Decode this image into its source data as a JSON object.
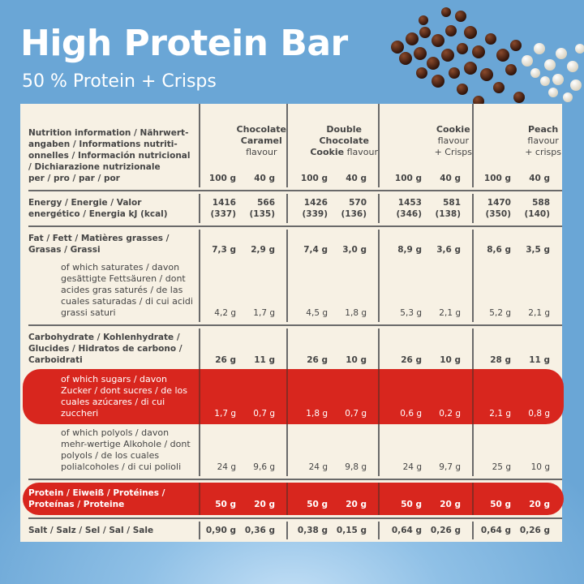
{
  "title": "High Protein Bar",
  "subtitle": "50 % Protein + Crisps",
  "header": {
    "label": "Nutrition information / Nährwert-angaben / Informations nutriti-onnelles / Información nutricional / Dichiarazione nutrizionale",
    "per": "per / pro / par / por",
    "units": [
      "100 g",
      "40 g"
    ]
  },
  "products": [
    {
      "lines": [
        [
          {
            "t": "Chocolate",
            "b": true
          }
        ],
        [
          {
            "t": "Caramel",
            "b": true
          }
        ],
        [
          {
            "t": "flavour",
            "b": false
          }
        ]
      ]
    },
    {
      "lines": [
        [
          {
            "t": "Double",
            "b": true
          }
        ],
        [
          {
            "t": "Chocolate",
            "b": true
          }
        ],
        [
          {
            "t": "Cookie",
            "b": true
          },
          {
            "t": " flavour",
            "b": false
          }
        ]
      ]
    },
    {
      "lines": [
        [
          {
            "t": "Cookie",
            "b": true
          }
        ],
        [
          {
            "t": "flavour",
            "b": false
          }
        ],
        [
          {
            "t": "+ Crisps",
            "b": false
          }
        ]
      ]
    },
    {
      "lines": [
        [
          {
            "t": "Peach",
            "b": true
          }
        ],
        [
          {
            "t": "flavour",
            "b": false
          }
        ],
        [
          {
            "t": "+ crisps",
            "b": false
          }
        ]
      ]
    }
  ],
  "sections": [
    [
      {
        "label": "Energy / Energie / Valor energético / Energia kJ (kcal)",
        "values": [
          "1416\n(337)",
          "566\n(135)",
          "1426\n(339)",
          "570\n(136)",
          "1453\n(346)",
          "581\n(138)",
          "1470\n(350)",
          "588\n(140)"
        ]
      }
    ],
    [
      {
        "label": "Fat / Fett / Matières grasses / Grasas / Grassi",
        "values": [
          "7,3 g",
          "2,9 g",
          "7,4 g",
          "3,0 g",
          "8,9 g",
          "3,6 g",
          "8,6 g",
          "3,5 g"
        ]
      },
      {
        "label": "of which saturates / davon gesättigte Fettsäuren / dont acides gras saturés / de las cuales saturadas / di cui acidi grassi saturi",
        "sub": true,
        "values": [
          "4,2 g",
          "1,7 g",
          "4,5 g",
          "1,8 g",
          "5,3 g",
          "2,1 g",
          "5,2 g",
          "2,1 g"
        ]
      }
    ],
    [
      {
        "label": "Carbohydrate / Kohlenhydrate / Glucides / Hidratos de carbono / Carboidrati",
        "values": [
          "26 g",
          "11 g",
          "26 g",
          "10 g",
          "26 g",
          "10 g",
          "28 g",
          "11 g"
        ]
      },
      {
        "label": "of which sugars / davon Zucker / dont sucres / de los cuales azúcares / di cui zuccheri",
        "sub": true,
        "highlight": true,
        "values": [
          "1,7 g",
          "0,7 g",
          "1,8 g",
          "0,7 g",
          "0,6 g",
          "0,2 g",
          "2,1 g",
          "0,8 g"
        ]
      },
      {
        "label": "of which polyols / davon mehr-wertige Alkohole / dont polyols / de los cuales polialcoholes / di cui polioli",
        "sub": true,
        "values": [
          "24 g",
          "9,6 g",
          "24 g",
          "9,8 g",
          "24 g",
          "9,7 g",
          "25 g",
          "10 g"
        ]
      }
    ],
    [
      {
        "label": "Protein / Eiweiß / Protéines / Proteínas / Proteine",
        "highlight": true,
        "values": [
          "50 g",
          "20 g",
          "50 g",
          "20 g",
          "50 g",
          "20 g",
          "50 g",
          "20 g"
        ]
      }
    ],
    [
      {
        "label": "Salt / Salz / Sel / Sal / Sale",
        "values": [
          "0,90 g",
          "0,36 g",
          "0,38 g",
          "0,15 g",
          "0,64 g",
          "0,26 g",
          "0,64 g",
          "0,26 g"
        ]
      }
    ]
  ],
  "colors": {
    "background": "#6aa6d6",
    "card": "#f7f1e4",
    "highlight": "#d8261e",
    "text": "#454545"
  },
  "decoration": "chocolate-and-white-crisp-balls"
}
